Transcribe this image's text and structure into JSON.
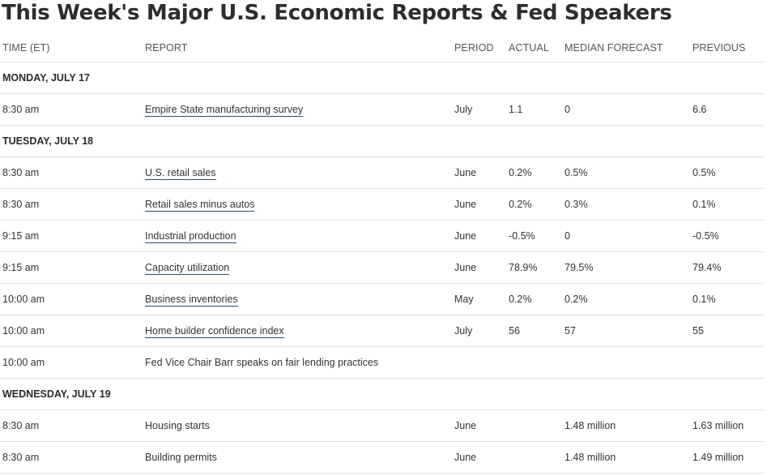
{
  "title": "This Week's Major U.S. Economic Reports & Fed Speakers",
  "columns": {
    "time": "TIME (ET)",
    "report": "REPORT",
    "period": "PERIOD",
    "actual": "ACTUAL",
    "median": "MEDIAN FORECAST",
    "previous": "PREVIOUS"
  },
  "days": [
    {
      "label": "MONDAY, JULY 17",
      "rows": [
        {
          "time": "8:30 am",
          "report": "Empire State manufacturing survey",
          "link": true,
          "period": "July",
          "actual": "1.1",
          "median": "0",
          "previous": "6.6"
        }
      ]
    },
    {
      "label": "TUESDAY, JULY 18",
      "rows": [
        {
          "time": "8:30 am",
          "report": "U.S. retail sales",
          "link": true,
          "period": "June",
          "actual": "0.2%",
          "median": "0.5%",
          "previous": "0.5%"
        },
        {
          "time": "8:30 am",
          "report": "Retail sales minus autos",
          "link": true,
          "period": "June",
          "actual": "0.2%",
          "median": "0.3%",
          "previous": "0.1%"
        },
        {
          "time": "9:15 am",
          "report": "Industrial production",
          "link": true,
          "period": "June",
          "actual": "-0.5%",
          "median": "0",
          "previous": "-0.5%"
        },
        {
          "time": "9:15 am",
          "report": "Capacity utilization",
          "link": true,
          "period": "June",
          "actual": "78.9%",
          "median": "79.5%",
          "previous": "79.4%"
        },
        {
          "time": "10:00 am",
          "report": "Business inventories",
          "link": true,
          "period": "May",
          "actual": "0.2%",
          "median": "0.2%",
          "previous": "0.1%"
        },
        {
          "time": "10:00 am",
          "report": "Home builder confidence index",
          "link": true,
          "period": "July",
          "actual": "56",
          "median": "57",
          "previous": "55"
        },
        {
          "time": "10:00 am",
          "report": "Fed Vice Chair Barr speaks on fair lending practices",
          "link": false,
          "period": "",
          "actual": "",
          "median": "",
          "previous": ""
        }
      ]
    },
    {
      "label": "WEDNESDAY, JULY 19",
      "rows": [
        {
          "time": "8:30 am",
          "report": "Housing starts",
          "link": false,
          "period": "June",
          "actual": "",
          "median": "1.48 million",
          "previous": "1.63 million"
        },
        {
          "time": "8:30 am",
          "report": "Building permits",
          "link": false,
          "period": "June",
          "actual": "",
          "median": "1.48 million",
          "previous": "1.49 million"
        }
      ]
    }
  ]
}
